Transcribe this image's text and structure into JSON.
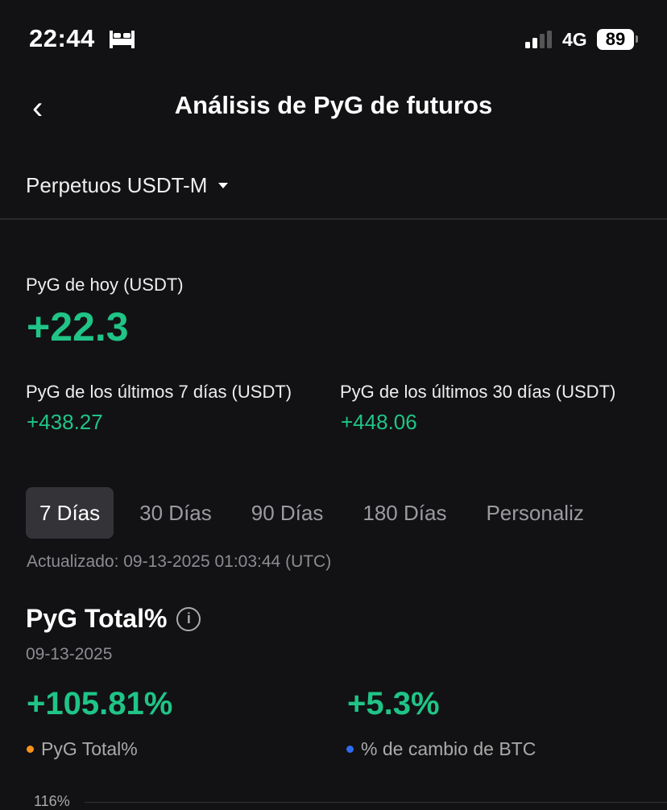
{
  "status_bar": {
    "time": "22:44",
    "network": "4G",
    "battery": "89",
    "sleep_icon": "bed-icon",
    "signal_icon": "signal-bars-icon"
  },
  "header": {
    "title": "Análisis de PyG de futuros",
    "back_icon": "chevron-left-icon"
  },
  "selector": {
    "value": "Perpetuos USDT-M"
  },
  "today": {
    "label": "PyG de hoy (USDT)",
    "value": "+22.3"
  },
  "week": {
    "label": "PyG de los últimos 7 días (USDT)",
    "value": "+438.27"
  },
  "month": {
    "label": "PyG de los últimos 30 días (USDT)",
    "value": "+448.06"
  },
  "tabs": [
    {
      "label": "7 Días",
      "active": true
    },
    {
      "label": "30 Días"
    },
    {
      "label": "90 Días"
    },
    {
      "label": "180 Días"
    },
    {
      "label": "Personaliz"
    }
  ],
  "updated": "Actualizado: 09-13-2025 01:03:44 (UTC)",
  "total": {
    "title": "PyG Total%",
    "date": "09-13-2025",
    "pnl_value": "+105.81%",
    "pnl_label": "PyG Total%",
    "btc_value": "+5.3%",
    "btc_label": "% de cambio de BTC",
    "axis_top": "116%"
  },
  "colors": {
    "positive": "#20c487",
    "pnl_dot": "#f7931a",
    "btc_dot": "#2f6bf0",
    "background": "#121214"
  }
}
